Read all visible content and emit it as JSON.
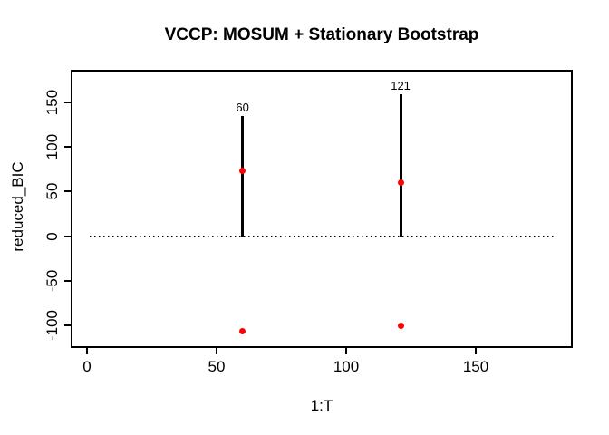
{
  "chart_data": {
    "type": "scatter",
    "title": "VCCP: MOSUM + Stationary Bootstrap",
    "xlabel": "1:T",
    "ylabel": "reduced_BIC",
    "xlim": [
      -6.3,
      187.4
    ],
    "ylim": [
      -125,
      186
    ],
    "x_ticks": [
      0,
      50,
      100,
      150
    ],
    "y_ticks": [
      -100,
      -50,
      0,
      50,
      100,
      150
    ],
    "grid": false,
    "legend": "none",
    "zero_line": {
      "y": 0,
      "x0": 1,
      "x1": 180,
      "style": "dotted"
    },
    "segments": [
      {
        "x": 60,
        "y0": 0,
        "y1": 134,
        "label": "60"
      },
      {
        "x": 121,
        "y0": 0,
        "y1": 159,
        "label": "121"
      }
    ],
    "points": [
      {
        "x": 60,
        "y": 73
      },
      {
        "x": 121,
        "y": 60
      },
      {
        "x": 60,
        "y": -106
      },
      {
        "x": 121,
        "y": -100
      }
    ],
    "colors": {
      "point": "#ff0000",
      "segment": "#000000",
      "axis": "#000000",
      "background": "#ffffff"
    }
  }
}
